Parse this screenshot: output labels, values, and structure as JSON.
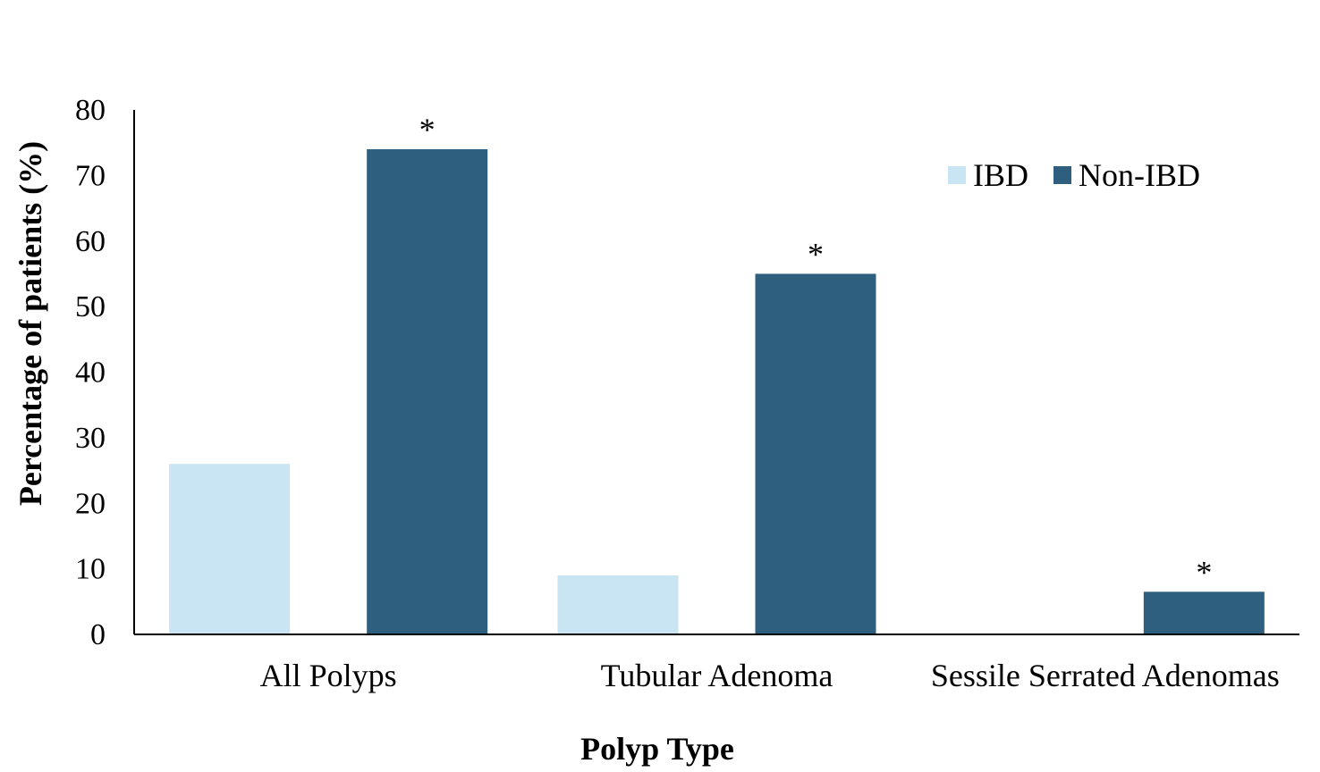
{
  "chart_data": {
    "type": "bar",
    "title": "",
    "xlabel": "Polyp Type",
    "ylabel": "Percentage of patients (%)",
    "ylim": [
      0,
      80
    ],
    "yticks": [
      0,
      10,
      20,
      30,
      40,
      50,
      60,
      70,
      80
    ],
    "grid": false,
    "legend_position": "top-right",
    "categories": [
      "All Polyps",
      "Tubular Adenoma",
      "Sessile Serrated Adenomas"
    ],
    "series": [
      {
        "name": "IBD",
        "color": "#c9e4f2",
        "values": [
          26,
          9,
          0
        ]
      },
      {
        "name": "Non-IBD",
        "color": "#2f5f7e",
        "values": [
          74,
          55,
          6.5
        ]
      }
    ],
    "annotations": [
      {
        "text": "*",
        "category": 0,
        "series": 1
      },
      {
        "text": "*",
        "category": 1,
        "series": 1
      },
      {
        "text": "*",
        "category": 2,
        "series": 1
      }
    ]
  }
}
